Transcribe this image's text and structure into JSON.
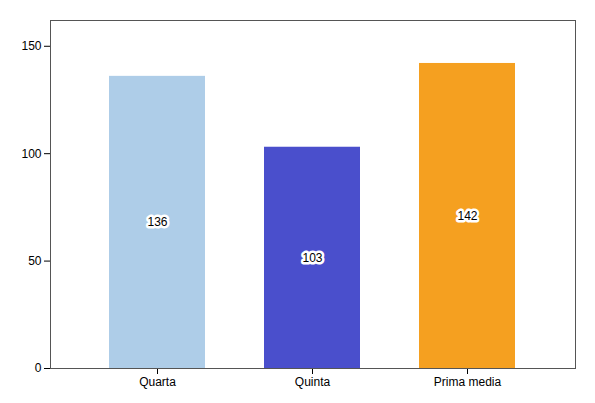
{
  "chart_data": {
    "type": "bar",
    "categories": [
      "Quarta",
      "Quinta",
      "Prima media"
    ],
    "values": [
      136,
      103,
      142
    ],
    "colors": [
      "#aecde8",
      "#4a4fcc",
      "#f5a020"
    ],
    "ylim": [
      0,
      162
    ],
    "yticks": [
      0,
      50,
      100,
      150
    ],
    "grid": false,
    "data_labels": true
  }
}
